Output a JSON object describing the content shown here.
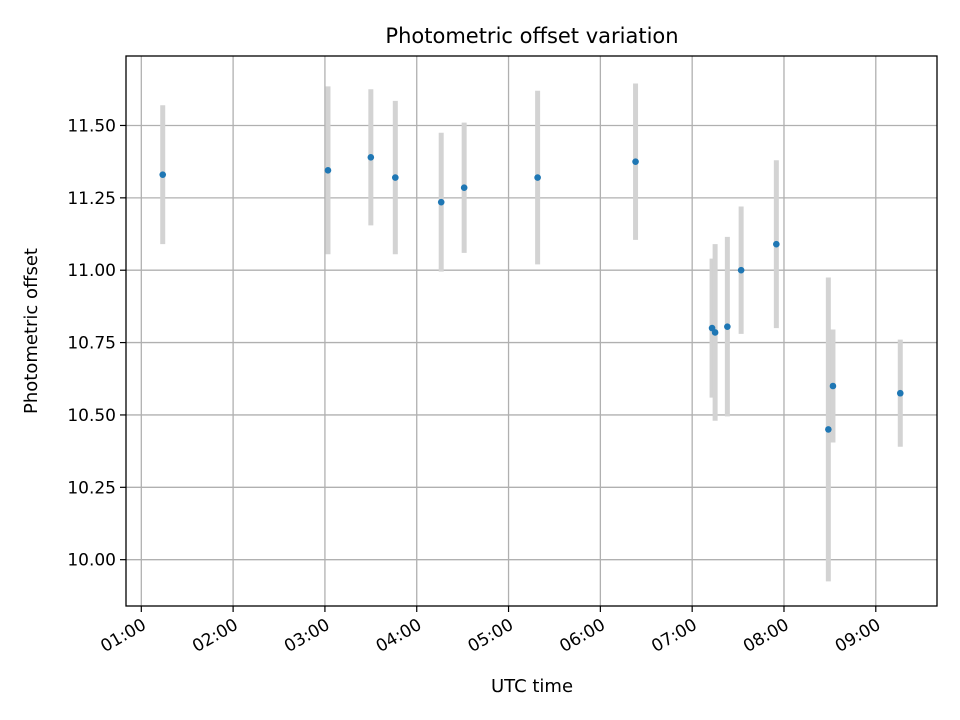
{
  "chart_data": {
    "type": "scatter",
    "title": "Photometric offset variation",
    "xlabel": "UTC time",
    "ylabel": "Photometric offset",
    "grid": true,
    "x_ticks": [
      "01:00",
      "02:00",
      "03:00",
      "04:00",
      "05:00",
      "06:00",
      "07:00",
      "08:00",
      "09:00"
    ],
    "y_ticks": [
      "10.00",
      "10.25",
      "10.50",
      "10.75",
      "11.00",
      "11.25",
      "11.50"
    ],
    "xlim": [
      "00:50",
      "09:40"
    ],
    "ylim": [
      9.84,
      11.74
    ],
    "colors": {
      "point": "#1f77b4",
      "errorbar": "#d3d3d3",
      "grid": "#b0b0b0"
    },
    "points": [
      {
        "x": "01:14",
        "y": 11.33,
        "err": 0.24
      },
      {
        "x": "03:02",
        "y": 11.345,
        "err": 0.29
      },
      {
        "x": "03:30",
        "y": 11.39,
        "err": 0.235
      },
      {
        "x": "03:46",
        "y": 11.32,
        "err": 0.265
      },
      {
        "x": "04:16",
        "y": 11.235,
        "err": 0.24
      },
      {
        "x": "04:31",
        "y": 11.285,
        "err": 0.225
      },
      {
        "x": "05:19",
        "y": 11.32,
        "err": 0.3
      },
      {
        "x": "06:23",
        "y": 11.375,
        "err": 0.27
      },
      {
        "x": "07:13",
        "y": 10.8,
        "err": 0.24
      },
      {
        "x": "07:15",
        "y": 10.785,
        "err": 0.305
      },
      {
        "x": "07:23",
        "y": 10.805,
        "err": 0.31
      },
      {
        "x": "07:32",
        "y": 11.0,
        "err": 0.22
      },
      {
        "x": "07:55",
        "y": 11.09,
        "err": 0.29
      },
      {
        "x": "08:29",
        "y": 10.45,
        "err": 0.525
      },
      {
        "x": "08:32",
        "y": 10.6,
        "err": 0.195
      },
      {
        "x": "09:16",
        "y": 10.575,
        "err": 0.185
      }
    ]
  }
}
